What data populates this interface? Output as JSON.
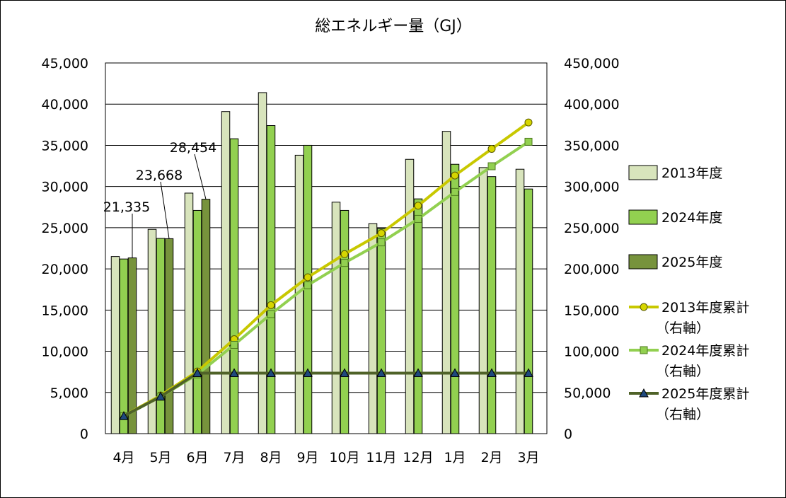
{
  "chart_data": {
    "type": "bar",
    "title": "総エネルギー量（GJ）",
    "categories": [
      "4月",
      "5月",
      "6月",
      "7月",
      "8月",
      "9月",
      "10月",
      "11月",
      "12月",
      "1月",
      "2月",
      "3月"
    ],
    "ylim_left": [
      0,
      45000
    ],
    "ylim_right": [
      0,
      450000
    ],
    "yticks_left": [
      "0",
      "5,000",
      "10,000",
      "15,000",
      "20,000",
      "25,000",
      "30,000",
      "35,000",
      "40,000",
      "45,000"
    ],
    "yticks_right": [
      "0",
      "50,000",
      "100,000",
      "150,000",
      "200,000",
      "250,000",
      "300,000",
      "350,000",
      "400,000",
      "450,000"
    ],
    "grid": true,
    "legend_position": "right",
    "bar_series": [
      {
        "name": "2013年度",
        "color": "#d8e4bc",
        "values": [
          21500,
          24800,
          29200,
          39100,
          41400,
          33800,
          28100,
          25500,
          33300,
          36700,
          32300,
          32100
        ]
      },
      {
        "name": "2024年度",
        "color": "#92d050",
        "values": [
          21200,
          23700,
          27100,
          35800,
          37400,
          35000,
          27100,
          24900,
          28500,
          32700,
          31200,
          29700
        ]
      },
      {
        "name": "2025年度",
        "color": "#77933c",
        "values": [
          21335,
          23668,
          28454,
          null,
          null,
          null,
          null,
          null,
          null,
          null,
          null,
          null
        ]
      }
    ],
    "line_series": [
      {
        "name": "2013年度累計",
        "name_suffix": "（右軸）",
        "color": "#c8c800",
        "marker_fill": "#d6d600",
        "marker": "circle",
        "values": [
          21500,
          46300,
          75500,
          114600,
          156000,
          189800,
          217900,
          243400,
          276700,
          313400,
          345700,
          377800
        ]
      },
      {
        "name": "2024年度累計",
        "name_suffix": "（右軸）",
        "color": "#92d050",
        "marker_fill": "#92d050",
        "marker": "square",
        "values": [
          21200,
          44900,
          72000,
          107800,
          145200,
          180200,
          207300,
          232200,
          260700,
          293400,
          324600,
          354300
        ]
      },
      {
        "name": "2025年度累計",
        "name_suffix": "（右軸）",
        "color": "#4f6228",
        "marker_fill": "#1f497d",
        "marker": "triangle",
        "values": [
          21335,
          45003,
          73457,
          73457,
          73457,
          73457,
          73457,
          73457,
          73457,
          73457,
          73457,
          73457
        ]
      }
    ],
    "data_labels": [
      {
        "series": "2025年度",
        "category": "4月",
        "text": "21,335"
      },
      {
        "series": "2025年度",
        "category": "5月",
        "text": "23,668"
      },
      {
        "series": "2025年度",
        "category": "6月",
        "text": "28,454"
      }
    ]
  }
}
